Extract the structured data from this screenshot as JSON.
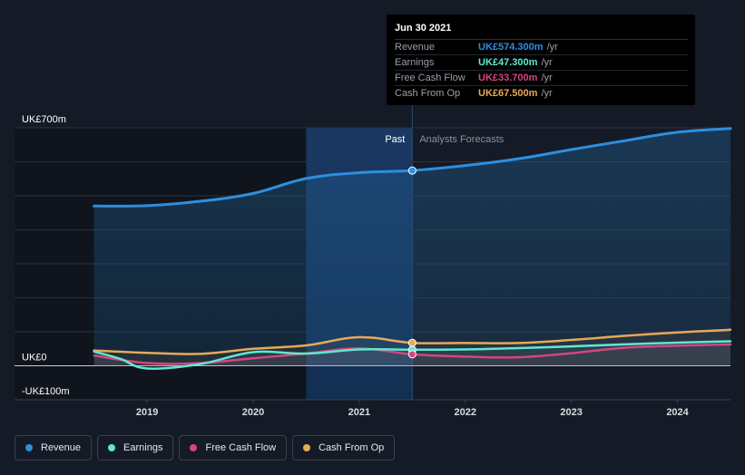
{
  "chart_data": {
    "type": "line",
    "ylim": [
      -100,
      700
    ],
    "y_tick_labels": [
      {
        "value": 700,
        "label": "UK£700m"
      },
      {
        "value": 0,
        "label": "UK£0"
      },
      {
        "value": -100,
        "label": "-UK£100m"
      }
    ],
    "x_ticks": [
      {
        "value": 2019,
        "label": "2019"
      },
      {
        "value": 2020,
        "label": "2020"
      },
      {
        "value": 2021,
        "label": "2021"
      },
      {
        "value": 2022,
        "label": "2022"
      },
      {
        "value": 2023,
        "label": "2023"
      },
      {
        "value": 2024,
        "label": "2024"
      }
    ],
    "xlim": [
      2017.75,
      2024.5
    ],
    "past_label": "Past",
    "forecast_label": "Analysts Forecasts",
    "past_end": 2021.5,
    "highlight_start": 2020.5,
    "series": [
      {
        "name": "Revenue",
        "color": "#2d8fe0",
        "fill": true,
        "points": [
          [
            2018.5,
            470
          ],
          [
            2019.0,
            471
          ],
          [
            2019.5,
            484
          ],
          [
            2020.0,
            507
          ],
          [
            2020.5,
            551
          ],
          [
            2021.0,
            568
          ],
          [
            2021.5,
            574.3
          ],
          [
            2022.0,
            589
          ],
          [
            2022.5,
            609
          ],
          [
            2023.0,
            636
          ],
          [
            2023.5,
            662
          ],
          [
            2024.0,
            687
          ],
          [
            2024.5,
            698
          ]
        ]
      },
      {
        "name": "Earnings",
        "color": "#5ee8d2",
        "fill": false,
        "points": [
          [
            2018.5,
            42
          ],
          [
            2018.75,
            20
          ],
          [
            2019.0,
            -8
          ],
          [
            2019.5,
            5
          ],
          [
            2020.0,
            40
          ],
          [
            2020.5,
            36
          ],
          [
            2021.0,
            48
          ],
          [
            2021.5,
            47.3
          ],
          [
            2022.0,
            48
          ],
          [
            2022.5,
            52
          ],
          [
            2023.0,
            57
          ],
          [
            2023.5,
            63
          ],
          [
            2024.0,
            68
          ],
          [
            2024.5,
            72
          ]
        ]
      },
      {
        "name": "Free Cash Flow",
        "color": "#d6457e",
        "fill": false,
        "points": [
          [
            2018.5,
            30
          ],
          [
            2019.0,
            8
          ],
          [
            2019.5,
            8
          ],
          [
            2020.0,
            22
          ],
          [
            2020.5,
            36
          ],
          [
            2021.0,
            51
          ],
          [
            2021.5,
            33.7
          ],
          [
            2022.0,
            27
          ],
          [
            2022.5,
            25
          ],
          [
            2023.0,
            37
          ],
          [
            2023.5,
            53
          ],
          [
            2024.0,
            59
          ],
          [
            2024.5,
            63
          ]
        ]
      },
      {
        "name": "Cash From Op",
        "color": "#e8a95a",
        "fill": false,
        "points": [
          [
            2018.5,
            45
          ],
          [
            2019.0,
            38
          ],
          [
            2019.5,
            35
          ],
          [
            2020.0,
            50
          ],
          [
            2020.5,
            60
          ],
          [
            2021.0,
            84
          ],
          [
            2021.5,
            67.5
          ],
          [
            2022.0,
            67
          ],
          [
            2022.5,
            67
          ],
          [
            2023.0,
            76
          ],
          [
            2023.5,
            88
          ],
          [
            2024.0,
            98
          ],
          [
            2024.5,
            106
          ]
        ]
      }
    ]
  },
  "tooltip": {
    "date": "Jun 30 2021",
    "rows": [
      {
        "name": "Revenue",
        "value": "UK£574.300m",
        "unit": "/yr",
        "color": "#2d8fe0"
      },
      {
        "name": "Earnings",
        "value": "UK£47.300m",
        "unit": "/yr",
        "color": "#5ee8d2"
      },
      {
        "name": "Free Cash Flow",
        "value": "UK£33.700m",
        "unit": "/yr",
        "color": "#d6457e"
      },
      {
        "name": "Cash From Op",
        "value": "UK£67.500m",
        "unit": "/yr",
        "color": "#e8a95a"
      }
    ]
  },
  "legend": [
    {
      "label": "Revenue",
      "color": "#2d8fe0"
    },
    {
      "label": "Earnings",
      "color": "#5ee8d2"
    },
    {
      "label": "Free Cash Flow",
      "color": "#d6457e"
    },
    {
      "label": "Cash From Op",
      "color": "#e8a95a"
    }
  ]
}
